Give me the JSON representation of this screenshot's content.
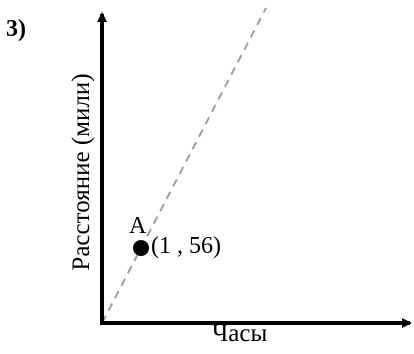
{
  "problem": {
    "number": "3)"
  },
  "axes": {
    "y_label": "Расстояние (мили)",
    "x_label": "Часы"
  },
  "point": {
    "name": "A",
    "coords_label": "(1 , 56)"
  },
  "colors": {
    "axes": "#000000",
    "dashed_line": "#9e9e9e",
    "point": "#000000"
  }
}
